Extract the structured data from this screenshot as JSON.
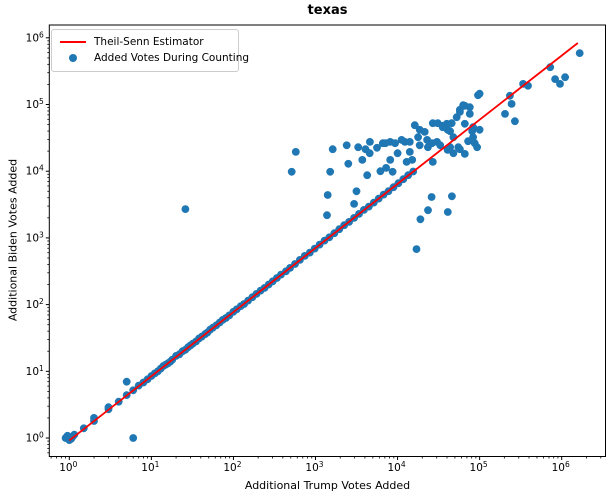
{
  "title": "texas",
  "axes": {
    "xlabel": "Additional Trump Votes Added",
    "ylabel": "Additional Biden Votes Added"
  },
  "legend": {
    "items": [
      {
        "label": "Theil-Senn Estimator",
        "swatch": "red-line",
        "color": "#ff0000"
      },
      {
        "label": "Added Votes During Counting",
        "swatch": "blue-dot",
        "color": "#1f77b4"
      }
    ]
  },
  "colors": {
    "marker": "#1f77b4",
    "estimator_line": "#ff0000",
    "spine": "#000000"
  },
  "chart_data": {
    "type": "scatter",
    "title": "texas",
    "xlabel": "Additional Trump Votes Added",
    "ylabel": "Additional Biden Votes Added",
    "x_scale": "log",
    "y_scale": "log",
    "xlim_log10": [
      -0.244,
      6.534
    ],
    "ylim_log10": [
      -0.277,
      6.192
    ],
    "x_tick_exponents": [
      0,
      1,
      2,
      3,
      4,
      5,
      6
    ],
    "y_tick_exponents": [
      0,
      1,
      2,
      3,
      4,
      5,
      6
    ],
    "grid": false,
    "legend_position": "upper-left",
    "estimator_line": {
      "name": "Theil-Senn Estimator",
      "x": [
        1,
        1570000
      ],
      "y": [
        0.92,
        837000
      ]
    },
    "series": [
      {
        "name": "Added Votes During Counting",
        "points": [
          [
            1,
            1
          ],
          [
            0.9,
            1
          ],
          [
            1.1,
            1.05
          ],
          [
            1,
            0.93
          ],
          [
            1.15,
            1.12
          ],
          [
            0.95,
            1.08
          ],
          [
            1.05,
            0.97
          ],
          [
            1.5,
            1.4
          ],
          [
            2,
            1.8
          ],
          [
            2,
            2
          ],
          [
            3,
            2.7
          ],
          [
            3,
            2.9
          ],
          [
            4,
            3.5
          ],
          [
            5,
            4.4
          ],
          [
            6,
            5.2
          ],
          [
            7,
            6.1
          ],
          [
            8,
            6.8
          ],
          [
            9,
            7.6
          ],
          [
            10,
            8.5
          ],
          [
            11,
            9.3
          ],
          [
            12,
            10
          ],
          [
            13,
            11
          ],
          [
            14,
            12
          ],
          [
            15,
            12.6
          ],
          [
            16,
            13.2
          ],
          [
            17,
            14
          ],
          [
            18,
            15
          ],
          [
            20,
            17
          ],
          [
            22,
            18
          ],
          [
            24,
            20
          ],
          [
            26,
            21
          ],
          [
            28,
            23
          ],
          [
            30,
            24.5
          ],
          [
            32,
            26
          ],
          [
            35,
            28
          ],
          [
            38,
            31
          ],
          [
            41,
            33
          ],
          [
            45,
            36
          ],
          [
            48,
            38
          ],
          [
            52,
            42
          ],
          [
            56,
            45
          ],
          [
            62,
            49
          ],
          [
            68,
            54
          ],
          [
            74,
            59
          ],
          [
            81,
            63
          ],
          [
            89,
            69
          ],
          [
            100,
            78
          ],
          [
            110,
            85
          ],
          [
            123,
            95
          ],
          [
            135,
            102
          ],
          [
            151,
            115
          ],
          [
            170,
            129
          ],
          [
            191,
            145
          ],
          [
            214,
            162
          ],
          [
            240,
            178
          ],
          [
            269,
            200
          ],
          [
            302,
            224
          ],
          [
            339,
            251
          ],
          [
            380,
            282
          ],
          [
            437,
            316
          ],
          [
            490,
            355
          ],
          [
            562,
            407
          ],
          [
            646,
            468
          ],
          [
            741,
            537
          ],
          [
            851,
            603
          ],
          [
            977,
            692
          ],
          [
            1122,
            794
          ],
          [
            1288,
            912
          ],
          [
            1479,
            1023
          ],
          [
            1698,
            1175
          ],
          [
            1950,
            1349
          ],
          [
            2239,
            1549
          ],
          [
            2570,
            1738
          ],
          [
            2951,
            1995
          ],
          [
            3388,
            2291
          ],
          [
            3890,
            2630
          ],
          [
            4467,
            2951
          ],
          [
            5129,
            3388
          ],
          [
            5888,
            3890
          ],
          [
            6761,
            4467
          ],
          [
            7762,
            5012
          ],
          [
            8913,
            5754
          ],
          [
            10233,
            6607
          ],
          [
            11749,
            7586
          ],
          [
            13490,
            8710
          ],
          [
            15500,
            9900
          ],
          [
            6,
            1
          ],
          [
            5,
            7
          ],
          [
            26,
            2700
          ],
          [
            575,
            19500
          ],
          [
            513,
            9800
          ],
          [
            1620,
            21400
          ],
          [
            1510,
            9800
          ],
          [
            1410,
            4400
          ],
          [
            2510,
            12900
          ],
          [
            3310,
            22900
          ],
          [
            4070,
            21400
          ],
          [
            4570,
            18600
          ],
          [
            3720,
            14800
          ],
          [
            5620,
            22400
          ],
          [
            6610,
            26300
          ],
          [
            8130,
            27500
          ],
          [
            9330,
            26300
          ],
          [
            12300,
            27500
          ],
          [
            8130,
            14800
          ],
          [
            10000,
            18600
          ],
          [
            14100,
            19500
          ],
          [
            16200,
            49000
          ],
          [
            18600,
            41700
          ],
          [
            21400,
            38900
          ],
          [
            17800,
            32400
          ],
          [
            22900,
            29500
          ],
          [
            26900,
            52500
          ],
          [
            30900,
            52500
          ],
          [
            35500,
            47900
          ],
          [
            40700,
            41700
          ],
          [
            47900,
            32400
          ],
          [
            26300,
            26300
          ],
          [
            30200,
            27500
          ],
          [
            40700,
            20900
          ],
          [
            47900,
            18600
          ],
          [
            55000,
            22900
          ],
          [
            12900,
            13800
          ],
          [
            15100,
            14800
          ],
          [
            6170,
            10000
          ],
          [
            7240,
            11200
          ],
          [
            8710,
            9800
          ],
          [
            3160,
            5000
          ],
          [
            4270,
            8710
          ],
          [
            2950,
            3240
          ],
          [
            1380,
            2190
          ],
          [
            2400,
            24500
          ],
          [
            4600,
            27500
          ],
          [
            7100,
            26300
          ],
          [
            11200,
            29500
          ],
          [
            14100,
            27500
          ],
          [
            18600,
            24500
          ],
          [
            23400,
            22900
          ],
          [
            33100,
            24500
          ],
          [
            43700,
            22900
          ],
          [
            83200,
            45700
          ],
          [
            100000,
            41700
          ],
          [
            45700,
            52500
          ],
          [
            52500,
            64600
          ],
          [
            57500,
            83200
          ],
          [
            63100,
            97700
          ],
          [
            95500,
            138000
          ],
          [
            17000,
            680
          ],
          [
            19000,
            1900
          ],
          [
            23500,
            2600
          ],
          [
            26000,
            4100
          ],
          [
            41000,
            2450
          ],
          [
            46000,
            4200
          ],
          [
            26900,
            13800
          ],
          [
            66000,
            18200
          ],
          [
            66000,
            95500
          ],
          [
            75900,
            91200
          ],
          [
            57500,
            77600
          ],
          [
            75900,
            72400
          ],
          [
            66000,
            51300
          ],
          [
            39800,
            51300
          ],
          [
            35500,
            45700
          ],
          [
            43700,
            39800
          ],
          [
            81300,
            39800
          ],
          [
            83200,
            32400
          ],
          [
            72400,
            28200
          ],
          [
            87100,
            26300
          ],
          [
            57500,
            21400
          ],
          [
            93300,
            22900
          ],
          [
            100000,
            145000
          ],
          [
            234000,
            135000
          ],
          [
            245000,
            102000
          ],
          [
            204000,
            72400
          ],
          [
            269000,
            56200
          ],
          [
            339000,
            204000
          ],
          [
            389000,
            191000
          ],
          [
            724000,
            363000
          ],
          [
            832000,
            240000
          ],
          [
            1100000,
            257000
          ],
          [
            955000,
            204000
          ],
          [
            1660000,
            589000
          ]
        ]
      }
    ]
  }
}
